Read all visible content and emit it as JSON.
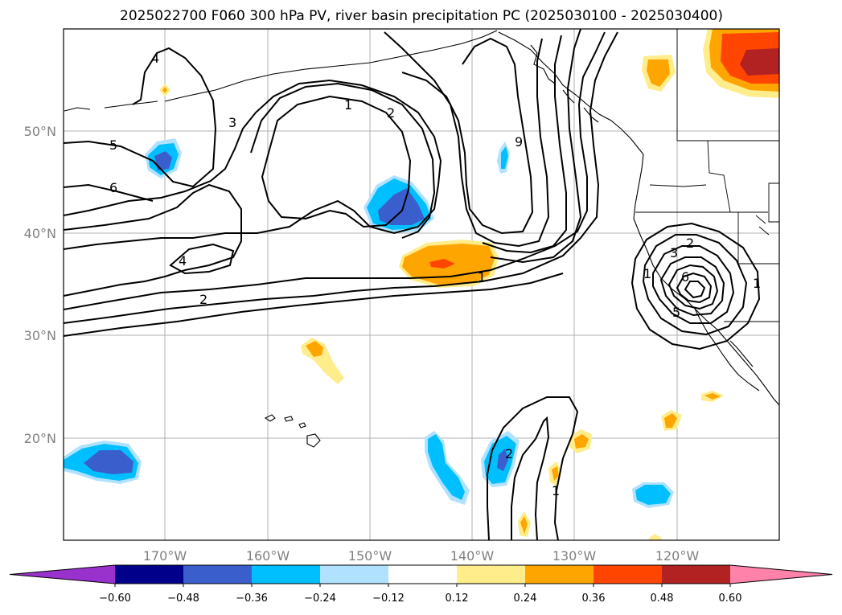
{
  "title": "2025022700 F060 300 hPa PV, river basin precipitation PC (2025030100 - 2025030400)",
  "map": {
    "lon_ticks": [
      "170°W",
      "160°W",
      "150°W",
      "140°W",
      "130°W",
      "120°W"
    ],
    "lat_ticks": [
      "50°N",
      "40°N",
      "30°N",
      "20°N"
    ],
    "contour_labels": [
      "4",
      "5",
      "6",
      "3",
      "1",
      "2",
      "9",
      "4",
      "2",
      "1",
      "2",
      "3",
      "6",
      "5",
      "1",
      "1",
      "2",
      "1"
    ]
  },
  "colorbar": {
    "colors": [
      "#9932cc",
      "#00008b",
      "#3a5fcd",
      "#00bfff",
      "#b0e2ff",
      "#ffffff",
      "#ffec8b",
      "#ffa500",
      "#ff4500",
      "#b22222",
      "#ff82ab"
    ],
    "ticks": [
      "−0.60",
      "−0.48",
      "−0.36",
      "−0.24",
      "−0.12",
      "0.12",
      "0.24",
      "0.36",
      "0.48",
      "0.60"
    ]
  }
}
